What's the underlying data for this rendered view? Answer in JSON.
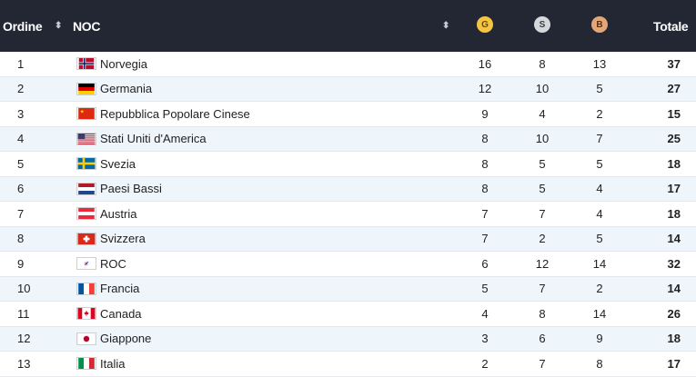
{
  "header": {
    "rank": "Ordine",
    "noc": "NOC",
    "sort_icon": "⬍",
    "gold": "G",
    "silver": "S",
    "bronze": "B",
    "total": "Totale"
  },
  "rows": [
    {
      "rank": "1",
      "flag": "norway",
      "name": "Norvegia",
      "gold": "16",
      "silver": "8",
      "bronze": "13",
      "total": "37"
    },
    {
      "rank": "2",
      "flag": "germany",
      "name": "Germania",
      "gold": "12",
      "silver": "10",
      "bronze": "5",
      "total": "27"
    },
    {
      "rank": "3",
      "flag": "china",
      "name": "Repubblica Popolare Cinese",
      "gold": "9",
      "silver": "4",
      "bronze": "2",
      "total": "15"
    },
    {
      "rank": "4",
      "flag": "usa",
      "name": "Stati Uniti d'America",
      "gold": "8",
      "silver": "10",
      "bronze": "7",
      "total": "25"
    },
    {
      "rank": "5",
      "flag": "sweden",
      "name": "Svezia",
      "gold": "8",
      "silver": "5",
      "bronze": "5",
      "total": "18"
    },
    {
      "rank": "6",
      "flag": "netherlands",
      "name": "Paesi Bassi",
      "gold": "8",
      "silver": "5",
      "bronze": "4",
      "total": "17"
    },
    {
      "rank": "7",
      "flag": "austria",
      "name": "Austria",
      "gold": "7",
      "silver": "7",
      "bronze": "4",
      "total": "18"
    },
    {
      "rank": "8",
      "flag": "switzerland",
      "name": "Svizzera",
      "gold": "7",
      "silver": "2",
      "bronze": "5",
      "total": "14"
    },
    {
      "rank": "9",
      "flag": "roc",
      "name": "ROC",
      "gold": "6",
      "silver": "12",
      "bronze": "14",
      "total": "32"
    },
    {
      "rank": "10",
      "flag": "france",
      "name": "Francia",
      "gold": "5",
      "silver": "7",
      "bronze": "2",
      "total": "14"
    },
    {
      "rank": "11",
      "flag": "canada",
      "name": "Canada",
      "gold": "4",
      "silver": "8",
      "bronze": "14",
      "total": "26"
    },
    {
      "rank": "12",
      "flag": "japan",
      "name": "Giappone",
      "gold": "3",
      "silver": "6",
      "bronze": "9",
      "total": "18"
    },
    {
      "rank": "13",
      "flag": "italy",
      "name": "Italia",
      "gold": "2",
      "silver": "7",
      "bronze": "8",
      "total": "17"
    }
  ]
}
